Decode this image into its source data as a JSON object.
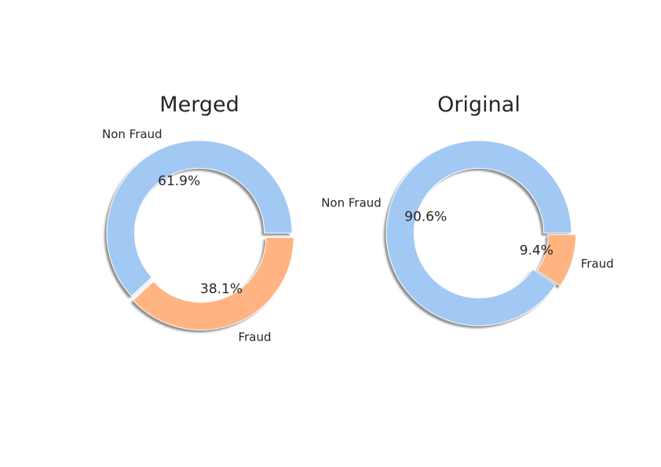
{
  "chart_data": [
    {
      "type": "pie",
      "style": "donut",
      "title": "Merged",
      "labels": [
        "Non Fraud",
        "Fraud"
      ],
      "values": [
        61.9,
        38.1
      ],
      "value_labels": [
        "61.9%",
        "38.1%"
      ],
      "colors": [
        "#a1c9f4",
        "#ffb482"
      ],
      "explode": [
        0,
        0.05
      ],
      "shadow": true,
      "start_angle_deg": 0,
      "direction": "counterclockwise"
    },
    {
      "type": "pie",
      "style": "donut",
      "title": "Original",
      "labels": [
        "Non Fraud",
        "Fraud"
      ],
      "values": [
        90.6,
        9.4
      ],
      "value_labels": [
        "90.6%",
        "9.4%"
      ],
      "colors": [
        "#a1c9f4",
        "#ffb482"
      ],
      "explode": [
        0,
        0.05
      ],
      "shadow": true,
      "start_angle_deg": 0,
      "direction": "counterclockwise"
    }
  ]
}
